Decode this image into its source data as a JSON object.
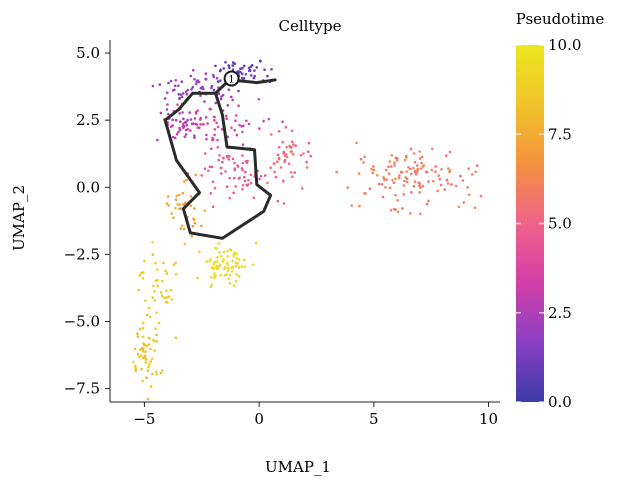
{
  "chart_data": {
    "type": "scatter",
    "title": "Celltype",
    "xlabel": "UMAP_1",
    "ylabel": "UMAP_2",
    "xlim": [
      -6.5,
      10.5
    ],
    "ylim": [
      -8.0,
      5.3
    ],
    "x_ticks": [
      -5,
      0,
      5,
      10
    ],
    "x_tick_labels": [
      "−5",
      "0",
      "5",
      "10"
    ],
    "y_ticks": [
      5.0,
      2.5,
      0.0,
      -2.5,
      -5.0,
      -7.5
    ],
    "y_tick_labels": [
      "5.0",
      "2.5",
      "0.0",
      "−2.5",
      "−5.0",
      "−7.5"
    ],
    "grid": false,
    "color_variable": "Pseudotime",
    "colorbar": {
      "title": "Pseudotime",
      "range": [
        0.0,
        10.0
      ],
      "ticks": [
        0.0,
        2.5,
        5.0,
        7.5,
        10.0
      ],
      "tick_labels": [
        "0.0",
        "2.5",
        "5.0",
        "7.5",
        "10.0"
      ],
      "colors": [
        "#3b3ba8",
        "#8a3fc4",
        "#d23fa8",
        "#f0628a",
        "#f5913f",
        "#f0c42a",
        "#ece61e"
      ]
    },
    "clusters": [
      {
        "center": [
          -0.8,
          4.3
        ],
        "spread": [
          1.2,
          0.45
        ],
        "n": 55,
        "pseudotime": 0.8
      },
      {
        "center": [
          -2.8,
          3.7
        ],
        "spread": [
          1.6,
          0.55
        ],
        "n": 65,
        "pseudotime": 2.0
      },
      {
        "center": [
          -3.4,
          2.4
        ],
        "spread": [
          1.0,
          0.7
        ],
        "n": 45,
        "pseudotime": 2.8
      },
      {
        "center": [
          -1.6,
          2.3
        ],
        "spread": [
          1.8,
          0.8
        ],
        "n": 60,
        "pseudotime": 3.4
      },
      {
        "center": [
          -1.0,
          0.6
        ],
        "spread": [
          1.7,
          0.8
        ],
        "n": 70,
        "pseudotime": 4.6
      },
      {
        "center": [
          1.3,
          1.2
        ],
        "spread": [
          1.1,
          1.1
        ],
        "n": 45,
        "pseudotime": 5.2
      },
      {
        "center": [
          6.8,
          0.3
        ],
        "spread": [
          2.4,
          1.1
        ],
        "n": 130,
        "pseudotime": 5.9
      },
      {
        "center": [
          -3.2,
          -0.9
        ],
        "spread": [
          0.7,
          1.0
        ],
        "n": 40,
        "pseudotime": 7.2
      },
      {
        "center": [
          -1.4,
          -2.9
        ],
        "spread": [
          1.0,
          0.75
        ],
        "n": 75,
        "pseudotime": 9.3
      },
      {
        "center": [
          -4.3,
          -3.7
        ],
        "spread": [
          0.9,
          1.3
        ],
        "n": 40,
        "pseudotime": 8.7
      },
      {
        "center": [
          -4.9,
          -6.2
        ],
        "spread": [
          0.55,
          1.2
        ],
        "n": 55,
        "pseudotime": 8.3
      }
    ],
    "trajectory": [
      [
        0.7,
        4.0
      ],
      [
        -0.1,
        3.9
      ],
      [
        -1.3,
        4.0
      ],
      [
        -1.9,
        3.5
      ],
      [
        -2.9,
        3.5
      ],
      [
        -3.5,
        2.9
      ],
      [
        -4.1,
        2.5
      ],
      [
        -3.6,
        1.0
      ],
      [
        -2.6,
        -0.2
      ],
      [
        -3.3,
        -0.8
      ],
      [
        -3.0,
        -1.7
      ],
      [
        -1.6,
        -1.9
      ],
      [
        0.2,
        -0.9
      ],
      [
        0.5,
        -0.3
      ],
      [
        -0.1,
        0.1
      ],
      [
        -0.2,
        1.4
      ],
      [
        -1.4,
        1.5
      ],
      [
        -1.6,
        2.7
      ],
      [
        -1.9,
        3.5
      ]
    ],
    "root_node": {
      "x": -1.2,
      "y": 4.05,
      "label": "1"
    }
  }
}
